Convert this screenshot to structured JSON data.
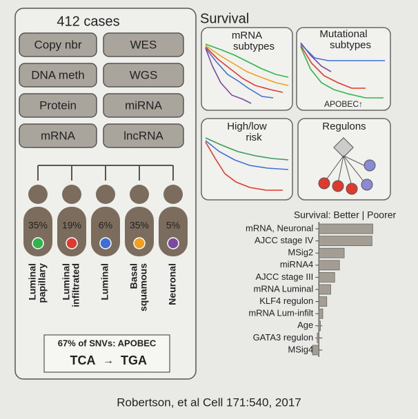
{
  "cases": {
    "title": "412 cases",
    "platforms": [
      "Copy nbr",
      "WES",
      "DNA meth",
      "WGS",
      "Protein",
      "miRNA",
      "mRNA",
      "lncRNA"
    ]
  },
  "subtypes": [
    {
      "percent": "35%",
      "color": "#2fb54a",
      "name": [
        "Luminal",
        "papillary"
      ]
    },
    {
      "percent": "19%",
      "color": "#e03a2f",
      "name": [
        "Luminal",
        "infiltrated"
      ]
    },
    {
      "percent": "6%",
      "color": "#3f6fd6",
      "name": [
        "Luminal"
      ]
    },
    {
      "percent": "35%",
      "color": "#f0a01e",
      "name": [
        "Basal",
        "squamous"
      ]
    },
    {
      "percent": "5%",
      "color": "#7b4aa0",
      "name": [
        "Neuronal"
      ]
    }
  ],
  "snv": {
    "text": "67% of SNVs: APOBEC",
    "from": "TCA",
    "arrow": "→",
    "to": "TGA"
  },
  "survival": {
    "title": "Survival",
    "panels": [
      {
        "label": [
          "mRNA",
          "subtypes"
        ]
      },
      {
        "label": [
          "Mutational",
          "subtypes"
        ],
        "note": "APOBEC↑"
      },
      {
        "label": [
          "High/low",
          "risk"
        ]
      },
      {
        "label": [
          "Regulons"
        ]
      }
    ]
  },
  "chart_data": {
    "type": "hbar",
    "title": "Survival:  Better | Poorer",
    "categories": [
      "mRNA, Neuronal",
      "AJCC stage IV",
      "MSig2",
      "miRNA4",
      "AJCC stage III",
      "mRNA Luminal",
      "KLF4 regulon",
      "mRNA Lum-infilt",
      "Age",
      "GATA3 regulon",
      "MSig4"
    ],
    "values": [
      68,
      67,
      32,
      26,
      20,
      15,
      10,
      5,
      2,
      -2,
      -8
    ],
    "color": "#a39d94",
    "xlim": [
      -15,
      85
    ]
  },
  "citation": "Robertson, et al  Cell 171:540, 2017"
}
